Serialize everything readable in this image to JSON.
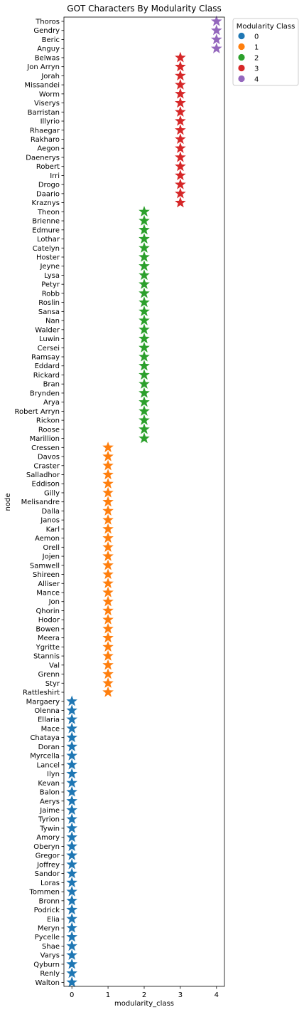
{
  "chart_data": {
    "type": "scatter",
    "title": "GOT Characters By Modularity Class",
    "xlabel": "modularity_class",
    "ylabel": "node",
    "xlim": [
      -0.22,
      4.22
    ],
    "xticks": [
      0,
      1,
      2,
      3,
      4
    ],
    "marker": "star",
    "grid": false,
    "legend": {
      "title": "Modularity Class",
      "placement": "upper right, outside plot",
      "entries": [
        "0",
        "1",
        "2",
        "3",
        "4"
      ]
    },
    "class_colors": [
      "#1f77b4",
      "#ff7f0e",
      "#2ca02c",
      "#d62728",
      "#9467bd"
    ],
    "points": [
      {
        "node": "Thoros",
        "class": 4
      },
      {
        "node": "Gendry",
        "class": 4
      },
      {
        "node": "Beric",
        "class": 4
      },
      {
        "node": "Anguy",
        "class": 4
      },
      {
        "node": "Belwas",
        "class": 3
      },
      {
        "node": "Jon Arryn",
        "class": 3
      },
      {
        "node": "Jorah",
        "class": 3
      },
      {
        "node": "Missandei",
        "class": 3
      },
      {
        "node": "Worm",
        "class": 3
      },
      {
        "node": "Viserys",
        "class": 3
      },
      {
        "node": "Barristan",
        "class": 3
      },
      {
        "node": "Illyrio",
        "class": 3
      },
      {
        "node": "Rhaegar",
        "class": 3
      },
      {
        "node": "Rakharo",
        "class": 3
      },
      {
        "node": "Aegon",
        "class": 3
      },
      {
        "node": "Daenerys",
        "class": 3
      },
      {
        "node": "Robert",
        "class": 3
      },
      {
        "node": "Irri",
        "class": 3
      },
      {
        "node": "Drogo",
        "class": 3
      },
      {
        "node": "Daario",
        "class": 3
      },
      {
        "node": "Kraznys",
        "class": 3
      },
      {
        "node": "Theon",
        "class": 2
      },
      {
        "node": "Brienne",
        "class": 2
      },
      {
        "node": "Edmure",
        "class": 2
      },
      {
        "node": "Lothar",
        "class": 2
      },
      {
        "node": "Catelyn",
        "class": 2
      },
      {
        "node": "Hoster",
        "class": 2
      },
      {
        "node": "Jeyne",
        "class": 2
      },
      {
        "node": "Lysa",
        "class": 2
      },
      {
        "node": "Petyr",
        "class": 2
      },
      {
        "node": "Robb",
        "class": 2
      },
      {
        "node": "Roslin",
        "class": 2
      },
      {
        "node": "Sansa",
        "class": 2
      },
      {
        "node": "Nan",
        "class": 2
      },
      {
        "node": "Walder",
        "class": 2
      },
      {
        "node": "Luwin",
        "class": 2
      },
      {
        "node": "Cersei",
        "class": 2
      },
      {
        "node": "Ramsay",
        "class": 2
      },
      {
        "node": "Eddard",
        "class": 2
      },
      {
        "node": "Rickard",
        "class": 2
      },
      {
        "node": "Bran",
        "class": 2
      },
      {
        "node": "Brynden",
        "class": 2
      },
      {
        "node": "Arya",
        "class": 2
      },
      {
        "node": "Robert Arryn",
        "class": 2
      },
      {
        "node": "Rickon",
        "class": 2
      },
      {
        "node": "Roose",
        "class": 2
      },
      {
        "node": "Marillion",
        "class": 2
      },
      {
        "node": "Cressen",
        "class": 1
      },
      {
        "node": "Davos",
        "class": 1
      },
      {
        "node": "Craster",
        "class": 1
      },
      {
        "node": "Salladhor",
        "class": 1
      },
      {
        "node": "Eddison",
        "class": 1
      },
      {
        "node": "Gilly",
        "class": 1
      },
      {
        "node": "Melisandre",
        "class": 1
      },
      {
        "node": "Dalla",
        "class": 1
      },
      {
        "node": "Janos",
        "class": 1
      },
      {
        "node": "Karl",
        "class": 1
      },
      {
        "node": "Aemon",
        "class": 1
      },
      {
        "node": "Orell",
        "class": 1
      },
      {
        "node": "Jojen",
        "class": 1
      },
      {
        "node": "Samwell",
        "class": 1
      },
      {
        "node": "Shireen",
        "class": 1
      },
      {
        "node": "Alliser",
        "class": 1
      },
      {
        "node": "Mance",
        "class": 1
      },
      {
        "node": "Jon",
        "class": 1
      },
      {
        "node": "Qhorin",
        "class": 1
      },
      {
        "node": "Hodor",
        "class": 1
      },
      {
        "node": "Bowen",
        "class": 1
      },
      {
        "node": "Meera",
        "class": 1
      },
      {
        "node": "Ygritte",
        "class": 1
      },
      {
        "node": "Stannis",
        "class": 1
      },
      {
        "node": "Val",
        "class": 1
      },
      {
        "node": "Grenn",
        "class": 1
      },
      {
        "node": "Styr",
        "class": 1
      },
      {
        "node": "Rattleshirt",
        "class": 1
      },
      {
        "node": "Margaery",
        "class": 0
      },
      {
        "node": "Olenna",
        "class": 0
      },
      {
        "node": "Ellaria",
        "class": 0
      },
      {
        "node": "Mace",
        "class": 0
      },
      {
        "node": "Chataya",
        "class": 0
      },
      {
        "node": "Doran",
        "class": 0
      },
      {
        "node": "Myrcella",
        "class": 0
      },
      {
        "node": "Lancel",
        "class": 0
      },
      {
        "node": "Ilyn",
        "class": 0
      },
      {
        "node": "Kevan",
        "class": 0
      },
      {
        "node": "Balon",
        "class": 0
      },
      {
        "node": "Aerys",
        "class": 0
      },
      {
        "node": "Jaime",
        "class": 0
      },
      {
        "node": "Tyrion",
        "class": 0
      },
      {
        "node": "Tywin",
        "class": 0
      },
      {
        "node": "Amory",
        "class": 0
      },
      {
        "node": "Oberyn",
        "class": 0
      },
      {
        "node": "Gregor",
        "class": 0
      },
      {
        "node": "Joffrey",
        "class": 0
      },
      {
        "node": "Sandor",
        "class": 0
      },
      {
        "node": "Loras",
        "class": 0
      },
      {
        "node": "Tommen",
        "class": 0
      },
      {
        "node": "Bronn",
        "class": 0
      },
      {
        "node": "Podrick",
        "class": 0
      },
      {
        "node": "Elia",
        "class": 0
      },
      {
        "node": "Meryn",
        "class": 0
      },
      {
        "node": "Pycelle",
        "class": 0
      },
      {
        "node": "Shae",
        "class": 0
      },
      {
        "node": "Varys",
        "class": 0
      },
      {
        "node": "Qyburn",
        "class": 0
      },
      {
        "node": "Renly",
        "class": 0
      },
      {
        "node": "Walton",
        "class": 0
      }
    ]
  }
}
